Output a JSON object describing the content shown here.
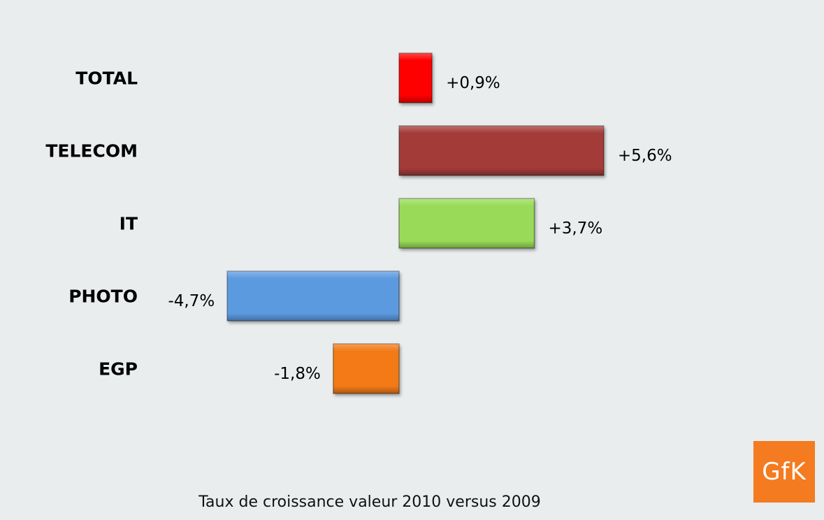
{
  "chart_data": {
    "type": "bar",
    "orientation": "horizontal",
    "categories": [
      "TOTAL",
      "TELECOM",
      "IT",
      "PHOTO",
      "EGP"
    ],
    "values": [
      0.9,
      5.6,
      3.7,
      -4.7,
      -1.8
    ],
    "value_labels": [
      "+0,9%",
      "+5,6%",
      "+3,7%",
      "-4,7%",
      "-1,8%"
    ],
    "colors": [
      "#ff0000",
      "#a33b38",
      "#99db58",
      "#5c9ae0",
      "#f37a14"
    ],
    "xlabel": "Taux de croissance valeur 2010 versus 2009",
    "ylabel": "",
    "grid": false,
    "legend": "none"
  },
  "logo": {
    "text": "GfK",
    "color": "#f47b20"
  }
}
